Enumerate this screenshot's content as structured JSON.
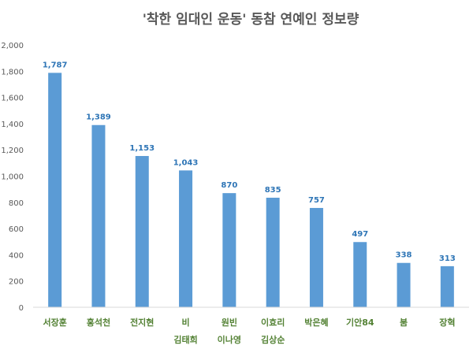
{
  "chart_data": {
    "type": "bar",
    "title": "'착한 임대인 운동' 동참 연예인 정보량",
    "categories": [
      [
        "서장훈"
      ],
      [
        "홍석천"
      ],
      [
        "전지현"
      ],
      [
        "비",
        "김태희"
      ],
      [
        "원빈",
        "이나영"
      ],
      [
        "이효리",
        "김상순"
      ],
      [
        "박은혜"
      ],
      [
        "기안84"
      ],
      [
        "붐"
      ],
      [
        "장혁"
      ]
    ],
    "values": [
      1787,
      1389,
      1153,
      1043,
      870,
      835,
      757,
      497,
      338,
      313
    ],
    "value_labels": [
      "1,787",
      "1,389",
      "1,153",
      "1,043",
      "870",
      "835",
      "757",
      "497",
      "338",
      "313"
    ],
    "ylim": [
      0,
      2000
    ],
    "yticks": [
      0,
      200,
      400,
      600,
      800,
      1000,
      1200,
      1400,
      1600,
      1800,
      2000
    ],
    "ytick_labels": [
      "0",
      "200",
      "400",
      "600",
      "800",
      "1,000",
      "1,200",
      "1,400",
      "1,600",
      "1,800",
      "2,000"
    ],
    "xlabel": "",
    "ylabel": "",
    "grid": false,
    "colors": {
      "bar": "#5b9bd5",
      "label": "#2e75b6",
      "category": "#548235",
      "title": "#595959"
    }
  }
}
